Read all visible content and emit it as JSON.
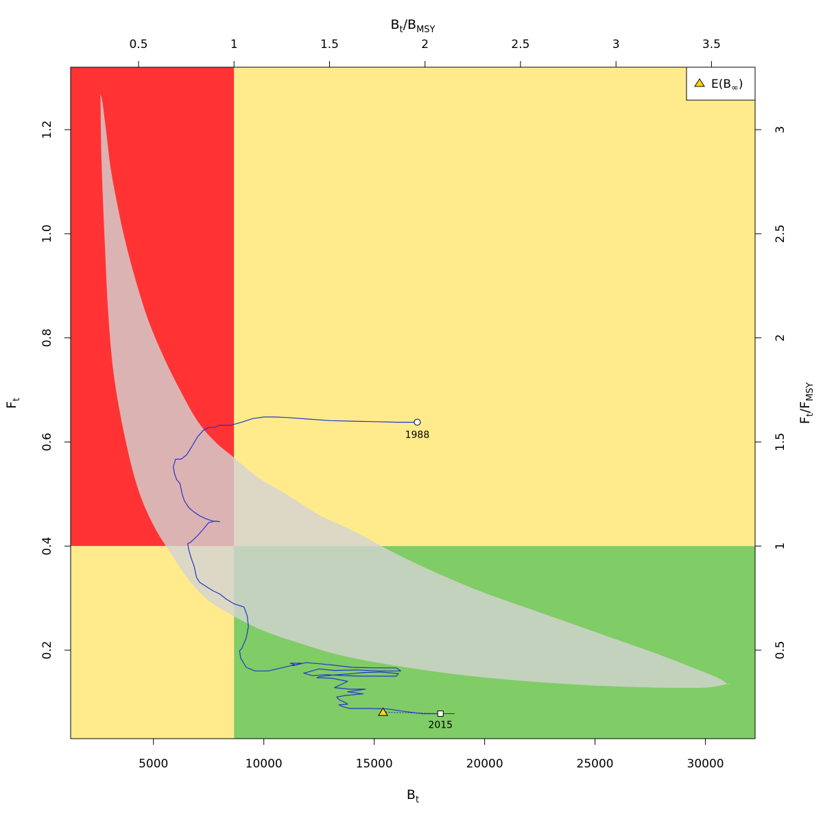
{
  "chart_data": {
    "type": "scatter",
    "xlabel": "Bt",
    "xlabel_main": "B",
    "xlabel_sub": "t",
    "ylabel": "Ft",
    "ylabel_main": "F",
    "ylabel_sub": "t",
    "top_label": "Bt/BMSY",
    "top_label_num": "B",
    "top_label_num_sub": "t",
    "top_label_den": "B",
    "top_label_den_sub": "MSY",
    "right_label": "Ft/FMSY",
    "right_label_num": "F",
    "right_label_num_sub": "t",
    "right_label_den": "F",
    "right_label_den_sub": "MSY",
    "xlim": [
      1250,
      32250
    ],
    "ylim": [
      0.03,
      1.32
    ],
    "x_ticks": [
      "5000",
      "10000",
      "15000",
      "20000",
      "25000",
      "30000"
    ],
    "x_tick_values": [
      5000,
      10000,
      15000,
      20000,
      25000,
      30000
    ],
    "y_ticks": [
      "0.2",
      "0.4",
      "0.6",
      "0.8",
      "1.0",
      "1.2"
    ],
    "y_tick_values": [
      0.2,
      0.4,
      0.6,
      0.8,
      1.0,
      1.2
    ],
    "top_ticks": [
      "0.5",
      "1",
      "1.5",
      "2",
      "2.5",
      "3",
      "3.5"
    ],
    "top_tick_values": [
      0.5,
      1,
      1.5,
      2,
      2.5,
      3,
      3.5
    ],
    "right_ticks": [
      "0.5",
      "1",
      "1.5",
      "2",
      "2.5",
      "3"
    ],
    "right_tick_values": [
      0.5,
      1,
      1.5,
      2,
      2.5,
      3
    ],
    "Bmsy": 8650,
    "Fmsy": 0.4,
    "zone_colors": {
      "red": "#ff3333",
      "yellow": "#ffeb8c",
      "green": "#80cc66"
    },
    "ellipse_color": "#d3d3d3",
    "trajectory_color": "#2233cc",
    "trajectory": {
      "x": [
        16950,
        16000,
        15000,
        14000,
        13000,
        12000,
        11000,
        10500,
        10000,
        9500,
        9000,
        8500,
        8000,
        7750,
        7500,
        7250,
        7000,
        6750,
        6500,
        6250,
        6000,
        5900,
        5950,
        6050,
        6200,
        6300,
        6400,
        6600,
        6850,
        7100,
        7400,
        7700,
        8000,
        7800,
        7500,
        7250,
        7000,
        6800,
        6650,
        6550,
        6600,
        6700,
        6850,
        6950,
        7100,
        7400,
        7700,
        8000,
        8300,
        8650,
        9100,
        9250,
        9300,
        9200,
        9000,
        8900,
        8950,
        9200,
        9600,
        10200,
        10800,
        11400,
        11200,
        11700,
        11300,
        11900,
        12500,
        13200,
        14000,
        15000,
        16000,
        16200,
        15200,
        14200,
        13200,
        12500,
        12000,
        11800,
        12200,
        12800,
        13600,
        14400,
        15200,
        16000,
        16100,
        15300,
        14500,
        13800,
        13100,
        12500,
        12400,
        13100,
        13800,
        13200,
        13900,
        14600,
        13800,
        14500,
        13700,
        13300,
        13400,
        13700,
        13800,
        13400,
        13600,
        13900,
        14800,
        15600,
        16600,
        17200,
        18000
      ],
      "y": [
        0.638,
        0.638,
        0.639,
        0.64,
        0.641,
        0.644,
        0.647,
        0.648,
        0.648,
        0.645,
        0.638,
        0.632,
        0.632,
        0.628,
        0.628,
        0.622,
        0.61,
        0.592,
        0.575,
        0.567,
        0.567,
        0.552,
        0.54,
        0.528,
        0.52,
        0.5,
        0.487,
        0.474,
        0.465,
        0.458,
        0.452,
        0.448,
        0.447,
        0.448,
        0.445,
        0.432,
        0.42,
        0.412,
        0.406,
        0.405,
        0.393,
        0.378,
        0.36,
        0.34,
        0.33,
        0.322,
        0.314,
        0.308,
        0.298,
        0.289,
        0.283,
        0.266,
        0.245,
        0.223,
        0.203,
        0.199,
        0.185,
        0.167,
        0.16,
        0.16,
        0.166,
        0.172,
        0.175,
        0.175,
        0.17,
        0.176,
        0.174,
        0.171,
        0.167,
        0.166,
        0.166,
        0.16,
        0.16,
        0.162,
        0.161,
        0.164,
        0.158,
        0.156,
        0.151,
        0.153,
        0.151,
        0.15,
        0.15,
        0.15,
        0.155,
        0.158,
        0.157,
        0.154,
        0.152,
        0.149,
        0.147,
        0.146,
        0.14,
        0.128,
        0.125,
        0.125,
        0.12,
        0.116,
        0.113,
        0.11,
        0.105,
        0.099,
        0.096,
        0.095,
        0.091,
        0.088,
        0.088,
        0.087,
        0.081,
        0.078,
        0.078
      ]
    },
    "ellipse": {
      "upper": {
        "x": [
          2600,
          2700,
          2850,
          3050,
          3300,
          3700,
          4200,
          4800,
          5500,
          6200,
          7000,
          7800,
          8650,
          9800,
          11000,
          12500,
          14000,
          16000,
          18000,
          20000,
          22000,
          24000,
          26000,
          28000,
          29500,
          30500,
          31000
        ],
        "y": [
          1.27,
          1.25,
          1.2,
          1.13,
          1.07,
          0.99,
          0.91,
          0.83,
          0.76,
          0.7,
          0.64,
          0.6,
          0.57,
          0.53,
          0.5,
          0.46,
          0.43,
          0.385,
          0.345,
          0.31,
          0.28,
          0.25,
          0.22,
          0.19,
          0.165,
          0.148,
          0.135
        ]
      },
      "lower": {
        "x": [
          31000,
          30000,
          28000,
          25000,
          22000,
          19000,
          16000,
          13500,
          11500,
          10000,
          8650,
          7500,
          6600,
          5800,
          5000,
          4300,
          3700,
          3200,
          2950,
          2800,
          2650,
          2600
        ],
        "y": [
          0.135,
          0.128,
          0.128,
          0.132,
          0.14,
          0.152,
          0.17,
          0.19,
          0.215,
          0.237,
          0.265,
          0.295,
          0.335,
          0.385,
          0.44,
          0.51,
          0.61,
          0.73,
          0.85,
          0.98,
          1.14,
          1.27
        ]
      }
    },
    "start_point": {
      "label": "1988",
      "x": 16950,
      "y": 0.638
    },
    "end_point": {
      "label": "2015",
      "x": 18000,
      "y": 0.078
    },
    "expected_point": {
      "x": 15400,
      "y": 0.081
    },
    "trajectory_tail": {
      "x": 18650,
      "y": 0.078
    },
    "legend": {
      "placement": "top-right",
      "label": "E(B",
      "label_sub": "∞",
      "label_close": ")",
      "marker_color": "#ffd700"
    }
  }
}
